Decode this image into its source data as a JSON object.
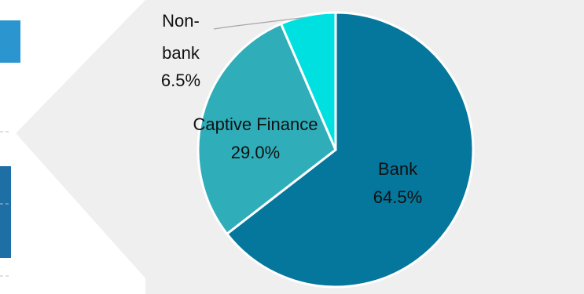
{
  "chart_data": {
    "type": "pie",
    "title": "",
    "slices": [
      {
        "name": "Bank",
        "pct_label": "64.5%",
        "value": 64.5,
        "color": "#05779C"
      },
      {
        "name": "Captive Finance",
        "pct_label": "29.0%",
        "value": 29.0,
        "color": "#2FADB9"
      },
      {
        "name": "Non-bank",
        "name_line1": "Non-",
        "name_line2": "bank",
        "pct_label": "6.5%",
        "value": 6.5,
        "color": "#00E0E0"
      }
    ],
    "start_angle_deg": 0,
    "direction": "clockwise",
    "legend": "none"
  },
  "colors": {
    "callout_bg": "#EFEFEF",
    "left_accent": "#2A95CF",
    "left_bar": "#1D6FA6",
    "slice_border": "#FFFFFF",
    "leader_line": "#A6A6A6"
  }
}
